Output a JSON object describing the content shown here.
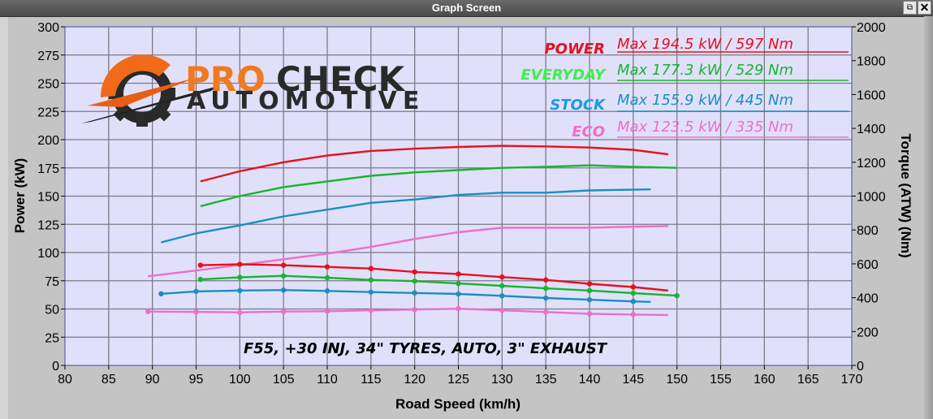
{
  "window": {
    "title": "Graph Screen",
    "restore_icon": "restore-icon",
    "close_icon": "close-icon"
  },
  "logo": {
    "word1": "PRO",
    "word2": "CHECK",
    "word3": "AUTOMOTIVE"
  },
  "note": "F55, +30 INJ, 34\" TYRES, AUTO, 3\" EXHAUST",
  "legend": [
    {
      "name": "POWER",
      "text": "Max 194.5 kW  / 597 Nm",
      "color": "#e8101e",
      "namecolor": "#e8101e"
    },
    {
      "name": "EVERYDAY",
      "text": "Max 177.3 kW  / 529 Nm",
      "color": "#17b52c",
      "namecolor": "#3cf04a"
    },
    {
      "name": "STOCK",
      "text": "Max 155.9 kW  / 445 Nm",
      "color": "#1a8fc0",
      "namecolor": "#1a9ae6"
    },
    {
      "name": "ECO",
      "text": "Max 123.5 kW  / 335 Nm",
      "color": "#ee6ec8",
      "namecolor": "#ee6ec8"
    }
  ],
  "chart_data": {
    "type": "line",
    "title": "",
    "xlabel": "Road Speed (km/h)",
    "ylabel": "Power (kW)",
    "y2label": "Torque (ATW) (Nm)",
    "xlim": [
      80,
      170
    ],
    "ylim": [
      0,
      300
    ],
    "y2lim": [
      0,
      2000
    ],
    "xticks": [
      80,
      85,
      90,
      95,
      100,
      105,
      110,
      115,
      120,
      125,
      130,
      135,
      140,
      145,
      150,
      155,
      160,
      165,
      170
    ],
    "yticks": [
      0,
      25,
      50,
      75,
      100,
      125,
      150,
      175,
      200,
      225,
      250,
      275,
      300
    ],
    "y2ticks": [
      0,
      200,
      400,
      600,
      800,
      1000,
      1200,
      1400,
      1600,
      1800,
      2000
    ],
    "grid": true,
    "series": [
      {
        "name": "POWER",
        "kind": "power",
        "color": "#e8101e",
        "x": [
          95.5,
          100,
          105,
          110,
          115,
          120,
          125,
          130,
          135,
          140,
          145,
          149
        ],
        "values": [
          163,
          172,
          180,
          186,
          190,
          192,
          193.5,
          194.5,
          194,
          193,
          191,
          187
        ]
      },
      {
        "name": "EVERYDAY",
        "kind": "power",
        "color": "#17b52c",
        "x": [
          95.5,
          100,
          105,
          110,
          115,
          120,
          125,
          130,
          135,
          140,
          145,
          150
        ],
        "values": [
          141,
          150,
          158,
          163,
          168,
          171,
          173,
          175,
          176,
          177.3,
          176,
          175
        ]
      },
      {
        "name": "STOCK",
        "kind": "power",
        "color": "#1a8fc0",
        "x": [
          91,
          95,
          100,
          105,
          110,
          115,
          120,
          125,
          130,
          135,
          140,
          147
        ],
        "values": [
          109,
          117,
          124,
          132,
          138,
          144,
          147,
          151,
          153,
          153,
          155,
          156
        ]
      },
      {
        "name": "ECO",
        "kind": "power",
        "color": "#ee6ec8",
        "x": [
          89.5,
          95,
          100,
          105,
          110,
          115,
          120,
          125,
          130,
          135,
          140,
          149
        ],
        "values": [
          79,
          84,
          89,
          94,
          99,
          105,
          112,
          118,
          122,
          122,
          122,
          123.5
        ]
      },
      {
        "name": "POWER",
        "kind": "torque",
        "color": "#e8101e",
        "x": [
          95.5,
          100,
          105,
          110,
          115,
          120,
          125,
          130,
          135,
          140,
          145,
          149
        ],
        "values": [
          592,
          597,
          592,
          582,
          572,
          552,
          540,
          522,
          505,
          482,
          463,
          442
        ]
      },
      {
        "name": "EVERYDAY",
        "kind": "torque",
        "color": "#17b52c",
        "x": [
          95.5,
          100,
          105,
          110,
          115,
          120,
          125,
          130,
          135,
          140,
          145,
          150
        ],
        "values": [
          508,
          520,
          529,
          518,
          505,
          498,
          484,
          470,
          455,
          442,
          427,
          412
        ]
      },
      {
        "name": "STOCK",
        "kind": "torque",
        "color": "#1a8fc0",
        "x": [
          91,
          95,
          100,
          105,
          110,
          115,
          120,
          125,
          130,
          135,
          140,
          145,
          147
        ],
        "values": [
          423,
          437,
          442,
          445,
          440,
          433,
          428,
          422,
          411,
          398,
          388,
          378,
          375
        ]
      },
      {
        "name": "ECO",
        "kind": "torque",
        "color": "#ee6ec8",
        "x": [
          89.5,
          95,
          100,
          105,
          110,
          115,
          120,
          125,
          130,
          135,
          140,
          145,
          149
        ],
        "values": [
          318,
          316,
          313,
          318,
          320,
          325,
          330,
          335,
          325,
          315,
          305,
          300,
          298
        ]
      }
    ]
  }
}
